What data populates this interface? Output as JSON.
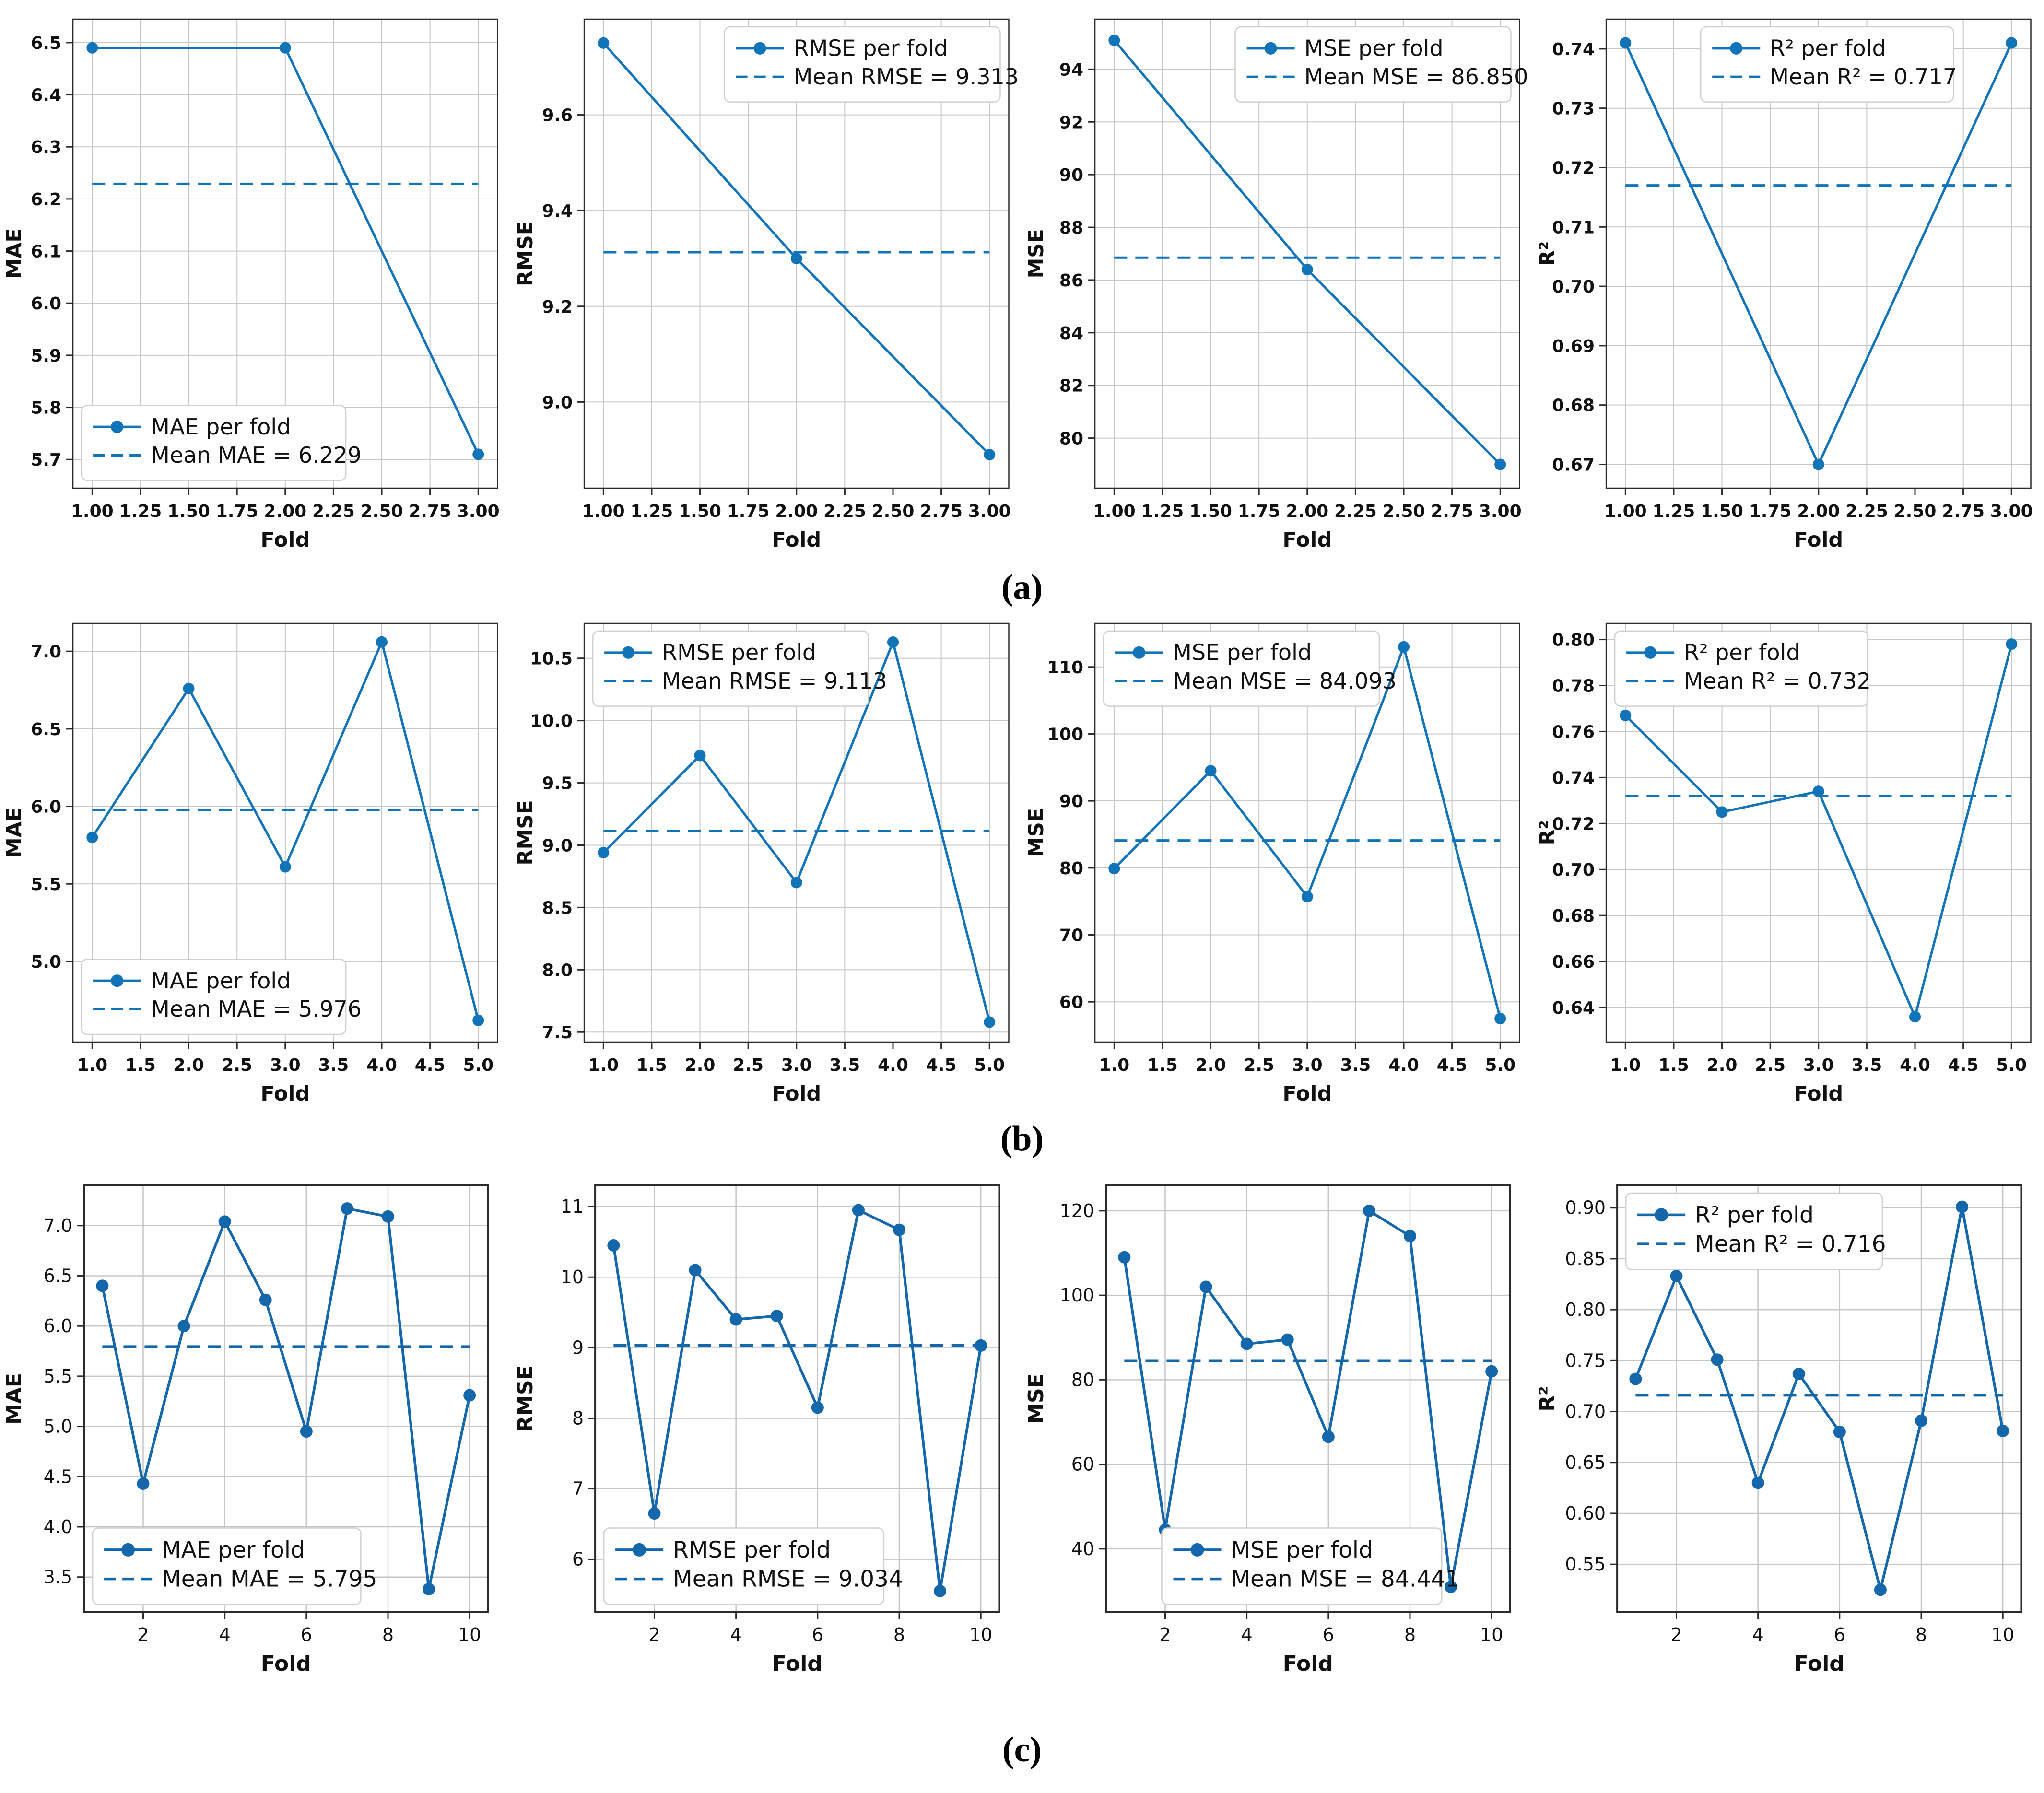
{
  "figure": {
    "captions": {
      "a": "(a)",
      "b": "(b)",
      "c": "(c)"
    }
  },
  "styles": {
    "line_color": "#1274b8",
    "line_color_row_c": "#1467ab",
    "grid_color": "#c6c6c6",
    "axis_color": "#2b2b2b",
    "text_color": "#111111",
    "legend_border": "#cfcfcf",
    "background": "#ffffff"
  },
  "chart_data": [
    {
      "id": "a-mae",
      "row": "a",
      "type": "line",
      "xlabel": "Fold",
      "ylabel": "MAE",
      "x": [
        1,
        2,
        3
      ],
      "values": [
        6.49,
        6.49,
        5.71
      ],
      "mean": 6.229,
      "legend": [
        "MAE per fold",
        "Mean MAE = 6.229"
      ],
      "legend_pos": "lower-left",
      "xlim": [
        0.9,
        3.1
      ],
      "ylim": [
        5.645,
        6.545
      ],
      "xticks": [
        1,
        1.25,
        1.5,
        1.75,
        2,
        2.25,
        2.5,
        2.75,
        3
      ],
      "xtick_labels": [
        "1.00",
        "1.25",
        "1.50",
        "1.75",
        "2.00",
        "2.25",
        "2.50",
        "2.75",
        "3.00"
      ],
      "yticks": [
        5.7,
        5.8,
        5.9,
        6.0,
        6.1,
        6.2,
        6.3,
        6.4,
        6.5
      ],
      "ytick_labels": [
        "5.7",
        "5.8",
        "5.9",
        "6.0",
        "6.1",
        "6.2",
        "6.3",
        "6.4",
        "6.5"
      ],
      "grid": true
    },
    {
      "id": "a-rmse",
      "row": "a",
      "type": "line",
      "xlabel": "Fold",
      "ylabel": "RMSE",
      "x": [
        1,
        2,
        3
      ],
      "values": [
        9.75,
        9.3,
        8.89
      ],
      "mean": 9.313,
      "legend": [
        "RMSE per fold",
        "Mean RMSE = 9.313"
      ],
      "legend_pos": "upper-right",
      "xlim": [
        0.9,
        3.1
      ],
      "ylim": [
        8.82,
        9.8
      ],
      "xticks": [
        1,
        1.25,
        1.5,
        1.75,
        2,
        2.25,
        2.5,
        2.75,
        3
      ],
      "xtick_labels": [
        "1.00",
        "1.25",
        "1.50",
        "1.75",
        "2.00",
        "2.25",
        "2.50",
        "2.75",
        "3.00"
      ],
      "yticks": [
        9.0,
        9.2,
        9.4,
        9.6
      ],
      "ytick_labels": [
        "9.0",
        "9.2",
        "9.4",
        "9.6"
      ],
      "grid": true
    },
    {
      "id": "a-mse",
      "row": "a",
      "type": "line",
      "xlabel": "Fold",
      "ylabel": "MSE",
      "x": [
        1,
        2,
        3
      ],
      "values": [
        95.1,
        86.4,
        79.0
      ],
      "mean": 86.85,
      "legend": [
        "MSE per fold",
        "Mean MSE = 86.850"
      ],
      "legend_pos": "upper-right",
      "xlim": [
        0.9,
        3.1
      ],
      "ylim": [
        78.1,
        95.9
      ],
      "xticks": [
        1,
        1.25,
        1.5,
        1.75,
        2,
        2.25,
        2.5,
        2.75,
        3
      ],
      "xtick_labels": [
        "1.00",
        "1.25",
        "1.50",
        "1.75",
        "2.00",
        "2.25",
        "2.50",
        "2.75",
        "3.00"
      ],
      "yticks": [
        80,
        82,
        84,
        86,
        88,
        90,
        92,
        94
      ],
      "ytick_labels": [
        "80",
        "82",
        "84",
        "86",
        "88",
        "90",
        "92",
        "94"
      ],
      "grid": true
    },
    {
      "id": "a-r2",
      "row": "a",
      "type": "line",
      "xlabel": "Fold",
      "ylabel": "R²",
      "x": [
        1,
        2,
        3
      ],
      "values": [
        0.741,
        0.67,
        0.741
      ],
      "mean": 0.717,
      "legend": [
        "R² per fold",
        "Mean R² = 0.717"
      ],
      "legend_pos": "upper-center",
      "xlim": [
        0.9,
        3.1
      ],
      "ylim": [
        0.666,
        0.745
      ],
      "xticks": [
        1,
        1.25,
        1.5,
        1.75,
        2,
        2.25,
        2.5,
        2.75,
        3
      ],
      "xtick_labels": [
        "1.00",
        "1.25",
        "1.50",
        "1.75",
        "2.00",
        "2.25",
        "2.50",
        "2.75",
        "3.00"
      ],
      "yticks": [
        0.67,
        0.68,
        0.69,
        0.7,
        0.71,
        0.72,
        0.73,
        0.74
      ],
      "ytick_labels": [
        "0.67",
        "0.68",
        "0.69",
        "0.70",
        "0.71",
        "0.72",
        "0.73",
        "0.74"
      ],
      "grid": true
    },
    {
      "id": "b-mae",
      "row": "b",
      "type": "line",
      "xlabel": "Fold",
      "ylabel": "MAE",
      "x": [
        1,
        2,
        3,
        4,
        5
      ],
      "values": [
        5.8,
        6.76,
        5.61,
        7.06,
        4.62
      ],
      "mean": 5.976,
      "legend": [
        "MAE per fold",
        "Mean MAE = 5.976"
      ],
      "legend_pos": "lower-left",
      "xlim": [
        0.8,
        5.2
      ],
      "ylim": [
        4.48,
        7.18
      ],
      "xticks": [
        1,
        1.5,
        2,
        2.5,
        3,
        3.5,
        4,
        4.5,
        5
      ],
      "xtick_labels": [
        "1.0",
        "1.5",
        "2.0",
        "2.5",
        "3.0",
        "3.5",
        "4.0",
        "4.5",
        "5.0"
      ],
      "yticks": [
        5.0,
        5.5,
        6.0,
        6.5,
        7.0
      ],
      "ytick_labels": [
        "5.0",
        "5.5",
        "6.0",
        "6.5",
        "7.0"
      ],
      "grid": true
    },
    {
      "id": "b-rmse",
      "row": "b",
      "type": "line",
      "xlabel": "Fold",
      "ylabel": "RMSE",
      "x": [
        1,
        2,
        3,
        4,
        5
      ],
      "values": [
        8.94,
        9.72,
        8.7,
        10.63,
        7.58
      ],
      "mean": 9.113,
      "legend": [
        "RMSE per fold",
        "Mean RMSE = 9.113"
      ],
      "legend_pos": "upper-left",
      "xlim": [
        0.8,
        5.2
      ],
      "ylim": [
        7.42,
        10.78
      ],
      "xticks": [
        1,
        1.5,
        2,
        2.5,
        3,
        3.5,
        4,
        4.5,
        5
      ],
      "xtick_labels": [
        "1.0",
        "1.5",
        "2.0",
        "2.5",
        "3.0",
        "3.5",
        "4.0",
        "4.5",
        "5.0"
      ],
      "yticks": [
        7.5,
        8.0,
        8.5,
        9.0,
        9.5,
        10.0,
        10.5
      ],
      "ytick_labels": [
        "7.5",
        "8.0",
        "8.5",
        "9.0",
        "9.5",
        "10.0",
        "10.5"
      ],
      "grid": true
    },
    {
      "id": "b-mse",
      "row": "b",
      "type": "line",
      "xlabel": "Fold",
      "ylabel": "MSE",
      "x": [
        1,
        2,
        3,
        4,
        5
      ],
      "values": [
        79.9,
        94.5,
        75.7,
        113.0,
        57.5
      ],
      "mean": 84.093,
      "legend": [
        "MSE per fold",
        "Mean MSE = 84.093"
      ],
      "legend_pos": "upper-left",
      "xlim": [
        0.8,
        5.2
      ],
      "ylim": [
        54,
        116.5
      ],
      "xticks": [
        1,
        1.5,
        2,
        2.5,
        3,
        3.5,
        4,
        4.5,
        5
      ],
      "xtick_labels": [
        "1.0",
        "1.5",
        "2.0",
        "2.5",
        "3.0",
        "3.5",
        "4.0",
        "4.5",
        "5.0"
      ],
      "yticks": [
        60,
        70,
        80,
        90,
        100,
        110
      ],
      "ytick_labels": [
        "60",
        "70",
        "80",
        "90",
        "100",
        "110"
      ],
      "grid": true
    },
    {
      "id": "b-r2",
      "row": "b",
      "type": "line",
      "xlabel": "Fold",
      "ylabel": "R²",
      "x": [
        1,
        2,
        3,
        4,
        5
      ],
      "values": [
        0.767,
        0.725,
        0.734,
        0.636,
        0.798
      ],
      "mean": 0.732,
      "legend": [
        "R² per fold",
        "Mean R² = 0.732"
      ],
      "legend_pos": "upper-left",
      "xlim": [
        0.8,
        5.2
      ],
      "ylim": [
        0.625,
        0.807
      ],
      "xticks": [
        1,
        1.5,
        2,
        2.5,
        3,
        3.5,
        4,
        4.5,
        5
      ],
      "xtick_labels": [
        "1.0",
        "1.5",
        "2.0",
        "2.5",
        "3.0",
        "3.5",
        "4.0",
        "4.5",
        "5.0"
      ],
      "yticks": [
        0.64,
        0.66,
        0.68,
        0.7,
        0.72,
        0.74,
        0.76,
        0.78,
        0.8
      ],
      "ytick_labels": [
        "0.64",
        "0.66",
        "0.68",
        "0.70",
        "0.72",
        "0.74",
        "0.76",
        "0.78",
        "0.80"
      ],
      "grid": true
    },
    {
      "id": "c-mae",
      "row": "c",
      "type": "line",
      "xlabel": "Fold",
      "ylabel": "MAE",
      "x": [
        1,
        2,
        3,
        4,
        5,
        6,
        7,
        8,
        9,
        10
      ],
      "values": [
        6.4,
        4.43,
        6.0,
        7.04,
        6.26,
        4.95,
        7.17,
        7.09,
        3.38,
        5.31
      ],
      "mean": 5.795,
      "legend": [
        "MAE per fold",
        "Mean MAE = 5.795"
      ],
      "legend_pos": "lower-left",
      "xlim": [
        0.55,
        10.45
      ],
      "ylim": [
        3.15,
        7.4
      ],
      "xticks": [
        2,
        4,
        6,
        8,
        10
      ],
      "xtick_labels": [
        "2",
        "4",
        "6",
        "8",
        "10"
      ],
      "yticks": [
        3.5,
        4.0,
        4.5,
        5.0,
        5.5,
        6.0,
        6.5,
        7.0
      ],
      "ytick_labels": [
        "3.5",
        "4.0",
        "4.5",
        "5.0",
        "5.5",
        "6.0",
        "6.5",
        "7.0"
      ],
      "grid": true
    },
    {
      "id": "c-rmse",
      "row": "c",
      "type": "line",
      "xlabel": "Fold",
      "ylabel": "RMSE",
      "x": [
        1,
        2,
        3,
        4,
        5,
        6,
        7,
        8,
        9,
        10
      ],
      "values": [
        10.45,
        6.65,
        10.1,
        9.4,
        9.45,
        8.15,
        10.95,
        10.67,
        5.55,
        9.03
      ],
      "mean": 9.034,
      "legend": [
        "RMSE per fold",
        "Mean RMSE = 9.034"
      ],
      "legend_pos": "lower-left",
      "xlim": [
        0.55,
        10.45
      ],
      "ylim": [
        5.25,
        11.3
      ],
      "xticks": [
        2,
        4,
        6,
        8,
        10
      ],
      "xtick_labels": [
        "2",
        "4",
        "6",
        "8",
        "10"
      ],
      "yticks": [
        6,
        7,
        8,
        9,
        10,
        11
      ],
      "ytick_labels": [
        "6",
        "7",
        "8",
        "9",
        "10",
        "11"
      ],
      "grid": true
    },
    {
      "id": "c-mse",
      "row": "c",
      "type": "line",
      "xlabel": "Fold",
      "ylabel": "MSE",
      "x": [
        1,
        2,
        3,
        4,
        5,
        6,
        7,
        8,
        9,
        10
      ],
      "values": [
        109,
        44.5,
        102,
        88.5,
        89.5,
        66.5,
        120,
        114,
        31,
        82
      ],
      "mean": 84.441,
      "legend": [
        "MSE per fold",
        "Mean MSE = 84.441"
      ],
      "legend_pos": "lower-center",
      "xlim": [
        0.55,
        10.45
      ],
      "ylim": [
        25,
        126
      ],
      "xticks": [
        2,
        4,
        6,
        8,
        10
      ],
      "xtick_labels": [
        "2",
        "4",
        "6",
        "8",
        "10"
      ],
      "yticks": [
        40,
        60,
        80,
        100,
        120
      ],
      "ytick_labels": [
        "40",
        "60",
        "80",
        "100",
        "120"
      ],
      "grid": true
    },
    {
      "id": "c-r2",
      "row": "c",
      "type": "line",
      "xlabel": "Fold",
      "ylabel": "R²",
      "x": [
        1,
        2,
        3,
        4,
        5,
        6,
        7,
        8,
        9,
        10
      ],
      "values": [
        0.732,
        0.833,
        0.751,
        0.63,
        0.737,
        0.68,
        0.525,
        0.691,
        0.901,
        0.681
      ],
      "mean": 0.716,
      "legend": [
        "R² per fold",
        "Mean R² = 0.716"
      ],
      "legend_pos": "upper-left",
      "xlim": [
        0.55,
        10.45
      ],
      "ylim": [
        0.503,
        0.922
      ],
      "xticks": [
        2,
        4,
        6,
        8,
        10
      ],
      "xtick_labels": [
        "2",
        "4",
        "6",
        "8",
        "10"
      ],
      "yticks": [
        0.55,
        0.6,
        0.65,
        0.7,
        0.75,
        0.8,
        0.85,
        0.9
      ],
      "ytick_labels": [
        "0.55",
        "0.60",
        "0.65",
        "0.70",
        "0.75",
        "0.80",
        "0.85",
        "0.90"
      ],
      "grid": true
    }
  ]
}
